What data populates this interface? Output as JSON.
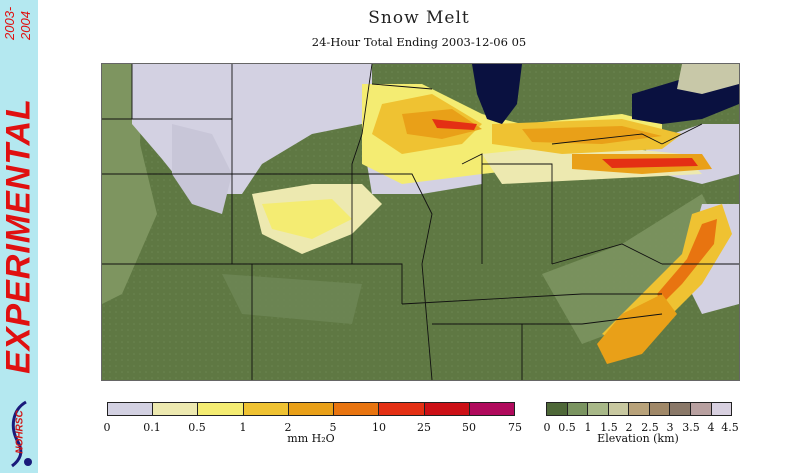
{
  "header": {
    "title": "Snow Melt",
    "subtitle": "24-Hour Total Ending 2003-12-06 05"
  },
  "sidebar": {
    "banner": "EXPERIMENTAL",
    "years_top": "2003-",
    "years_bottom": "2004",
    "logo_text": "NOHRSC"
  },
  "melt_legend": {
    "unit_label": "mm H₂O",
    "ticks": [
      "0",
      "0.1",
      "0.5",
      "1",
      "2",
      "5",
      "10",
      "25",
      "50",
      "75"
    ],
    "colors": [
      "#d3d1e2",
      "#ede9b0",
      "#f4ec72",
      "#efc232",
      "#e9a018",
      "#e87410",
      "#e43014",
      "#cc1016",
      "#b00a5c"
    ]
  },
  "elevation_legend": {
    "unit_label": "Elevation (km)",
    "ticks": [
      "0",
      "0.5",
      "1",
      "1.5",
      "2",
      "2.5",
      "3",
      "3.5",
      "4",
      "4.5"
    ],
    "colors": [
      "#4e6838",
      "#7a9460",
      "#a8b888",
      "#c8c8a0",
      "#b8a27a",
      "#a08868",
      "#8a7868",
      "#b8a0a0",
      "#d8d0e0"
    ]
  },
  "map": {
    "colors": {
      "lowland": "#5f7843",
      "upland": "#7c9460",
      "water": "#0a1140",
      "borders": "#111111"
    }
  }
}
